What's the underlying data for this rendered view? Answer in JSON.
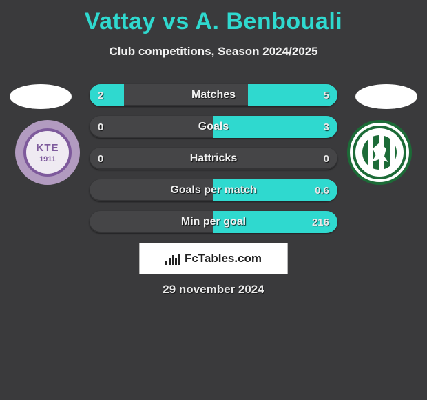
{
  "title_left": "Vattay",
  "title_vs": " vs ",
  "title_right": "A. Benbouali",
  "subtitle": "Club competitions, Season 2024/2025",
  "date": "29 november 2024",
  "brand": "FcTables.com",
  "colors": {
    "accent": "#2fd9cf",
    "row_bg": "#454547",
    "page_bg": "#3a3a3c",
    "text": "#f1f1f1"
  },
  "left_badge": {
    "top": "KTE",
    "year": "1911"
  },
  "rows": [
    {
      "label": "Matches",
      "left": "2",
      "right": "5",
      "left_pct": 14,
      "right_pct": 36
    },
    {
      "label": "Goals",
      "left": "0",
      "right": "3",
      "left_pct": 0,
      "right_pct": 50
    },
    {
      "label": "Hattricks",
      "left": "0",
      "right": "0",
      "left_pct": 0,
      "right_pct": 0
    },
    {
      "label": "Goals per match",
      "left": "",
      "right": "0.6",
      "left_pct": 0,
      "right_pct": 50
    },
    {
      "label": "Min per goal",
      "left": "",
      "right": "216",
      "left_pct": 0,
      "right_pct": 50
    }
  ]
}
